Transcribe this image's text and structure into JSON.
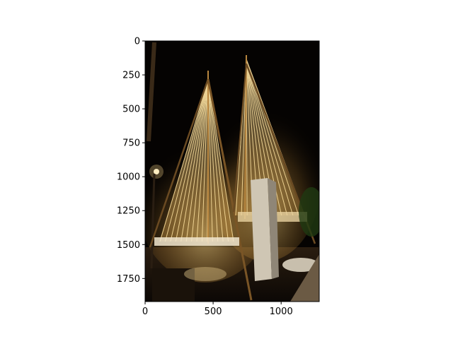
{
  "image": {
    "description": "Two illuminated cone-shaped light installations at night, with string lights draped from a central pole, a stone monument in front and a street lamp on the left.",
    "colors": {
      "background": "#050302",
      "glow": "#f3c766",
      "warm": "#d99a3a",
      "axis": "#000000"
    }
  },
  "chart_data": {
    "type": "image",
    "x_ticks": [
      {
        "value": 0,
        "label": "0"
      },
      {
        "value": 500,
        "label": "500"
      },
      {
        "value": 1000,
        "label": "1000"
      }
    ],
    "y_ticks": [
      {
        "value": 0,
        "label": "0"
      },
      {
        "value": 250,
        "label": "250"
      },
      {
        "value": 500,
        "label": "500"
      },
      {
        "value": 750,
        "label": "750"
      },
      {
        "value": 1000,
        "label": "1000"
      },
      {
        "value": 1250,
        "label": "1250"
      },
      {
        "value": 1500,
        "label": "1500"
      },
      {
        "value": 1750,
        "label": "1750"
      }
    ],
    "xlim": [
      0,
      1280
    ],
    "ylim": [
      1920,
      0
    ]
  }
}
